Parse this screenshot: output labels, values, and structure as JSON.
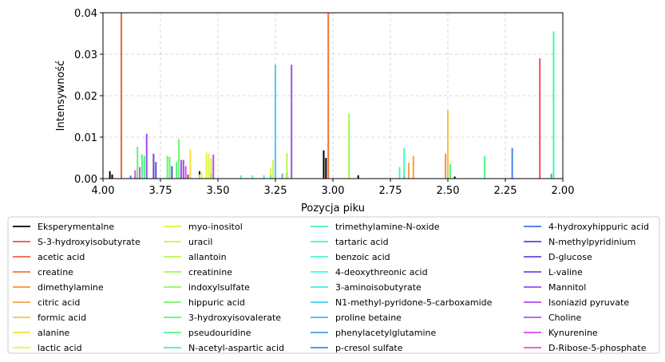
{
  "chart_data": {
    "type": "bar",
    "xlabel": "Pozycja piku",
    "ylabel": "Intensywność",
    "xlim": [
      4.0,
      2.0
    ],
    "ylim": [
      0,
      0.04
    ],
    "x_inverted": true,
    "grid": true,
    "x_ticks": [
      "4.00",
      "3.75",
      "3.50",
      "3.25",
      "3.00",
      "2.75",
      "2.50",
      "2.25",
      "2.00"
    ],
    "x_tick_values": [
      4.0,
      3.75,
      3.5,
      3.25,
      3.0,
      2.75,
      2.5,
      2.25,
      2.0
    ],
    "y_ticks": [
      "0.00",
      "0.01",
      "0.02",
      "0.03",
      "0.04"
    ],
    "y_tick_values": [
      0,
      0.01,
      0.02,
      0.03,
      0.04
    ],
    "legend_position": "below",
    "series": [
      {
        "name": "Eksperymentalne",
        "color": "#000000",
        "peaks": [
          [
            3.97,
            0.0018
          ],
          [
            3.96,
            0.001
          ],
          [
            3.58,
            0.0018
          ],
          [
            3.53,
            0.0012
          ],
          [
            3.2,
            0.0015
          ],
          [
            3.04,
            0.0068
          ],
          [
            3.03,
            0.005
          ],
          [
            2.89,
            0.0008
          ],
          [
            2.69,
            0.0006
          ],
          [
            2.47,
            0.0005
          ]
        ]
      },
      {
        "name": "S-3-hydroxyisobutyrate",
        "color": "#f14f4f",
        "peaks": [
          [
            2.1,
            0.029
          ]
        ]
      },
      {
        "name": "acetic acid",
        "color": "#f5603c",
        "peaks": [
          [
            3.92,
            0.045
          ]
        ]
      },
      {
        "name": "creatine",
        "color": "#f7713a",
        "peaks": [
          [
            3.02,
            0.04
          ]
        ]
      },
      {
        "name": "dimethylamine",
        "color": "#f7913a",
        "peaks": [
          [
            2.51,
            0.006
          ]
        ]
      },
      {
        "name": "citric acid",
        "color": "#f7a53a",
        "peaks": [
          [
            2.65,
            0.0055
          ],
          [
            2.67,
            0.0038
          ]
        ]
      },
      {
        "name": "formic acid",
        "color": "#f7c23a",
        "peaks": [
          [
            2.5,
            0.0165
          ]
        ]
      },
      {
        "name": "alanine",
        "color": "#f7dd3a",
        "peaks": [
          [
            3.62,
            0.007
          ]
        ]
      },
      {
        "name": "lactic acid",
        "color": "#f2f03a",
        "peaks": [
          [
            3.57,
            0.0015
          ]
        ]
      },
      {
        "name": "myo-inositol",
        "color": "#e2f53a",
        "peaks": [
          [
            3.55,
            0.0063
          ],
          [
            3.54,
            0.006
          ],
          [
            3.27,
            0.0025
          ]
        ]
      },
      {
        "name": "uracil",
        "color": "#cdf73a",
        "peaks": [
          [
            3.53,
            0.0048
          ],
          [
            3.26,
            0.0045
          ]
        ]
      },
      {
        "name": "allantoin",
        "color": "#b8f74b",
        "peaks": [
          [
            3.2,
            0.0062
          ]
        ]
      },
      {
        "name": "creatinine",
        "color": "#a3f755",
        "peaks": [
          [
            2.93,
            0.0158
          ]
        ]
      },
      {
        "name": "indoxylsulfate",
        "color": "#8ef762",
        "peaks": [
          [
            3.58,
            0.001
          ]
        ]
      },
      {
        "name": "hippuric acid",
        "color": "#73f76a",
        "peaks": [
          [
            3.67,
            0.0095
          ]
        ]
      },
      {
        "name": "3-hydroxyisovalerate",
        "color": "#5ef773",
        "peaks": [
          [
            3.85,
            0.0077
          ],
          [
            3.72,
            0.0055
          ],
          [
            3.71,
            0.0052
          ]
        ]
      },
      {
        "name": "pseudouridine",
        "color": "#4ff785",
        "peaks": [
          [
            3.83,
            0.0058
          ],
          [
            3.82,
            0.0055
          ],
          [
            3.68,
            0.004
          ],
          [
            2.34,
            0.0055
          ]
        ]
      },
      {
        "name": "N-acetyl-aspartic acid",
        "color": "#45f795",
        "peaks": [
          [
            2.04,
            0.0355
          ],
          [
            2.49,
            0.0035
          ]
        ]
      },
      {
        "name": "trimethylamine-N-oxide",
        "color": "#45f7a8",
        "peaks": [
          [
            3.27,
            0.0008
          ]
        ]
      },
      {
        "name": "tartaric acid",
        "color": "#45f7c0",
        "peaks": [
          [
            2.69,
            0.0074
          ],
          [
            2.71,
            0.0028
          ]
        ]
      },
      {
        "name": "benzoic acid",
        "color": "#45f7d5",
        "peaks": [
          [
            3.4,
            0.0008
          ]
        ]
      },
      {
        "name": "4-deoxythreonic acid",
        "color": "#45f2e8",
        "peaks": [
          [
            3.35,
            0.0008
          ]
        ]
      },
      {
        "name": "3-aminoisobutyrate",
        "color": "#45e5f7",
        "peaks": [
          [
            3.3,
            0.0008
          ]
        ]
      },
      {
        "name": "N1-methyl-pyridone-5-carboxamide",
        "color": "#45cdf7",
        "peaks": [
          [
            3.25,
            0.0275
          ]
        ]
      },
      {
        "name": "proline betaine",
        "color": "#45b5f7",
        "peaks": [
          [
            3.22,
            0.0012
          ]
        ]
      },
      {
        "name": "phenylacetylglutamine",
        "color": "#459bf7",
        "peaks": [
          [
            2.05,
            0.0012
          ]
        ]
      },
      {
        "name": "p-cresol sulfate",
        "color": "#4583f0",
        "peaks": [
          [
            2.22,
            0.0074
          ]
        ]
      },
      {
        "name": "4-hydroxyhippuric acid",
        "color": "#456de5",
        "peaks": [
          [
            3.88,
            0.0007
          ]
        ]
      },
      {
        "name": "N-methylpyridinium",
        "color": "#4a4af2",
        "peaks": [
          [
            3.86,
            0.0005
          ]
        ]
      },
      {
        "name": "D-glucose",
        "color": "#5e4ae0",
        "peaks": [
          [
            3.78,
            0.006
          ],
          [
            3.77,
            0.004
          ],
          [
            3.7,
            0.003
          ]
        ]
      },
      {
        "name": "L-valine",
        "color": "#734ae0",
        "peaks": [
          [
            3.63,
            0.001
          ]
        ]
      },
      {
        "name": "Mannitol",
        "color": "#9b4af2",
        "peaks": [
          [
            3.81,
            0.0108
          ],
          [
            3.66,
            0.0045
          ],
          [
            3.65,
            0.0045
          ]
        ]
      },
      {
        "name": "Isoniazid pyruvate",
        "color": "#b04af2",
        "peaks": [
          [
            3.18,
            0.0275
          ]
        ]
      },
      {
        "name": "Choline",
        "color": "#c54af2",
        "peaks": [
          [
            3.52,
            0.0058
          ]
        ]
      },
      {
        "name": "Kynurenine",
        "color": "#d84af2",
        "peaks": [
          [
            3.84,
            0.0028
          ]
        ]
      },
      {
        "name": "D-Ribose-5-phosphate",
        "color": "#ec4ae0",
        "peaks": [
          [
            3.86,
            0.002
          ],
          [
            3.64,
            0.003
          ]
        ]
      }
    ]
  }
}
